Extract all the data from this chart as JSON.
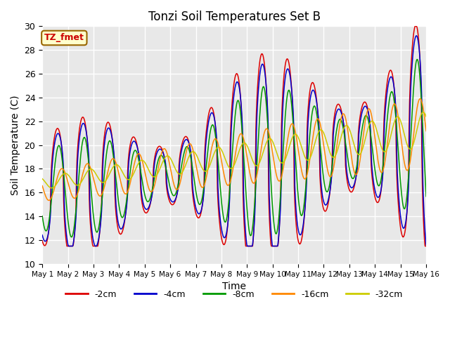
{
  "title": "Tonzi Soil Temperatures Set B",
  "xlabel": "Time",
  "ylabel": "Soil Temperature (C)",
  "ylim": [
    10,
    30
  ],
  "xlim": [
    0,
    15
  ],
  "annotation_text": "TZ_fmet",
  "annotation_color": "#cc0000",
  "annotation_bg": "#ffffcc",
  "annotation_border": "#996600",
  "bg_color": "#e8e8e8",
  "grid_color": "white",
  "series_colors": [
    "#dd0000",
    "#0000cc",
    "#009900",
    "#ff8800",
    "#cccc00"
  ],
  "series_labels": [
    "-2cm",
    "-4cm",
    "-8cm",
    "-16cm",
    "-32cm"
  ],
  "x_tick_labels": [
    "May 1",
    "May 2",
    "May 3",
    "May 4",
    "May 5",
    "May 6",
    "May 7",
    "May 8",
    "May 9",
    "May 10",
    "May 11",
    "May 12",
    "May 13",
    "May 14",
    "May 15",
    "May 16"
  ],
  "figsize": [
    6.4,
    4.8
  ],
  "dpi": 100
}
